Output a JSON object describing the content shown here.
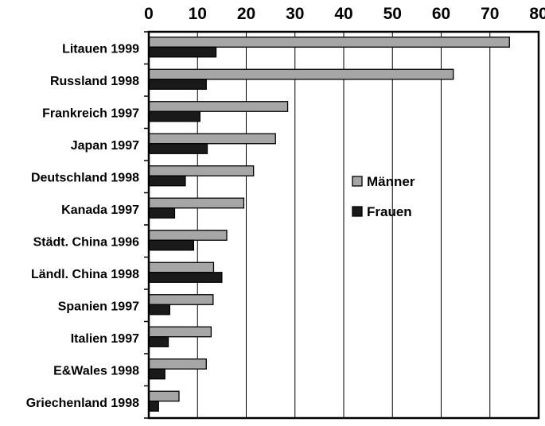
{
  "chart_data": {
    "type": "bar",
    "orientation": "horizontal",
    "categories": [
      "Litauen 1999",
      "Russland 1998",
      "Frankreich 1997",
      "Japan 1997",
      "Deutschland 1998",
      "Kanada 1997",
      "Städt. China 1996",
      "Ländl. China 1998",
      "Spanien 1997",
      "Italien 1997",
      "E&Wales 1998",
      "Griechenland 1998"
    ],
    "series": [
      {
        "name": "Männer",
        "color": "#a6a6a6",
        "values": [
          74,
          62.5,
          28.5,
          26,
          21.5,
          19.5,
          16,
          13.3,
          13.2,
          12.8,
          11.8,
          6.2
        ]
      },
      {
        "name": "Frauen",
        "color": "#1a1a1a",
        "values": [
          13.8,
          11.8,
          10.5,
          12,
          7.5,
          5.3,
          9.2,
          15,
          4.3,
          4,
          3.3,
          2
        ]
      }
    ],
    "xlim": [
      0,
      80
    ],
    "xticks": [
      0,
      10,
      20,
      30,
      40,
      50,
      60,
      70,
      80
    ],
    "xaxis_position": "top",
    "grid": "vertical",
    "legend_position": "center-right",
    "title": "",
    "xlabel": "",
    "ylabel": ""
  }
}
